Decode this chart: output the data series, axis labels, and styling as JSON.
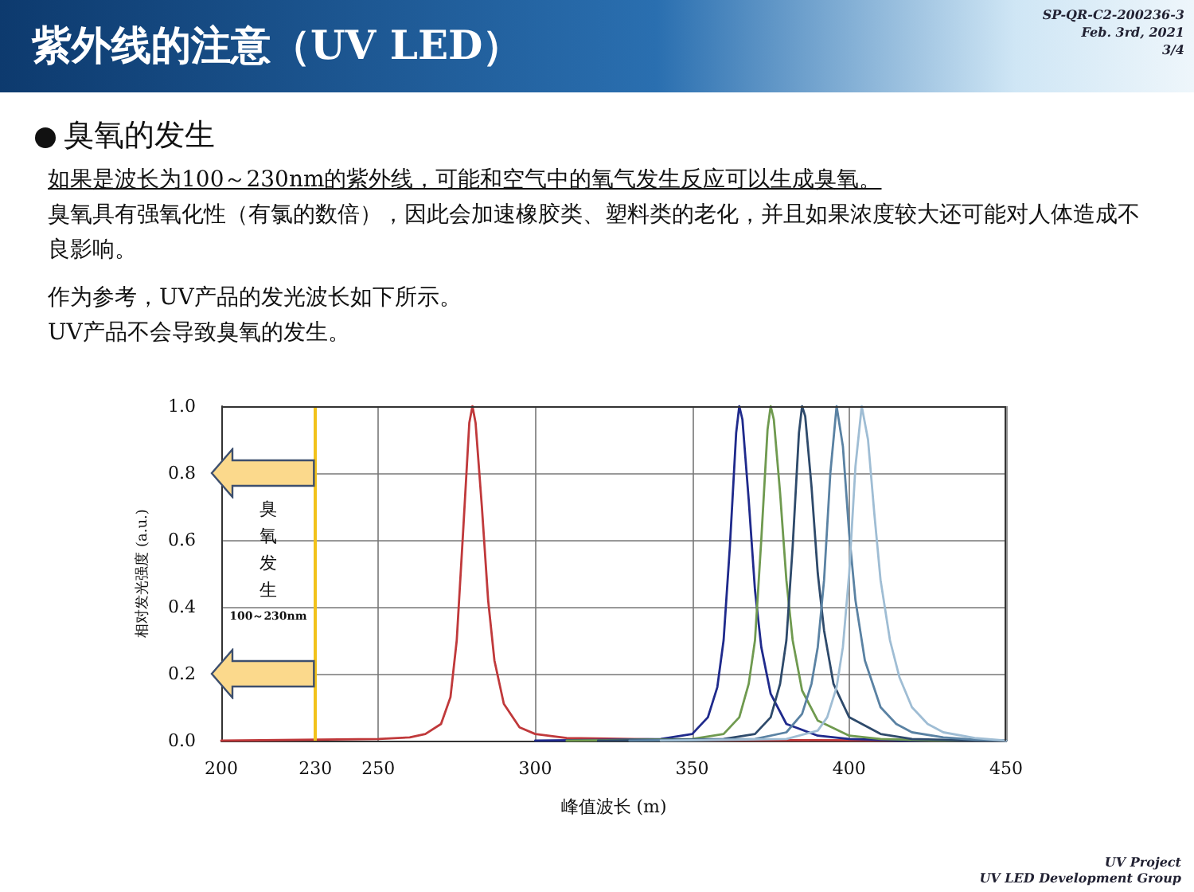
{
  "chart_data": {
    "type": "line",
    "title": "紫外线的注意（UV LED）",
    "subtitle": "臭氧的发生",
    "xlabel": "峰值波长 (m)",
    "ylabel": "相对发光强度 (a.u.)",
    "xlim": [
      200,
      450
    ],
    "xticks": [
      200,
      230,
      250,
      300,
      350,
      400,
      450
    ],
    "ylim": [
      0,
      1
    ],
    "yticks": [
      {
        "value": 0,
        "label": "0.0"
      },
      {
        "value": 0.2,
        "label": "0.2"
      },
      {
        "value": 0.4,
        "label": "0.4"
      },
      {
        "value": 0.6,
        "label": "0.6"
      },
      {
        "value": 0.8,
        "label": "0.8"
      },
      {
        "value": 1,
        "label": "1.0"
      }
    ],
    "grid": true,
    "marker": "none",
    "line_style": "solid",
    "ref_lines": [
      {
        "axis": "x",
        "value": 230,
        "color": "#f2c21b"
      }
    ],
    "annotations": [
      "SP-QR-C2-200236-3",
      "Feb. 3rd, 2021",
      "3/4",
      "如果是波长为100～230nm的紫外线，可能和空气中的氧气发生反应可以生成臭氧。",
      "臭氧具有强氧化性（有氯的数倍），因此会加速橡胶类、塑料类的老化，并且如果浓度较大还可能对人体造成不良影响。",
      "作为参考，UV产品的发光波长如下所示。",
      "UV产品不会导致臭氧的发生。",
      "UV Project",
      "UV LED Development Group",
      "臭氧发生",
      "100～230nm"
    ],
    "series": [
      {
        "color": "#c0393b",
        "x": [
          200,
          250,
          260,
          265,
          270,
          273,
          275,
          277,
          279,
          280,
          281,
          283,
          285,
          287,
          290,
          295,
          300,
          310,
          350,
          450
        ],
        "values": [
          0,
          0.005,
          0.01,
          0.02,
          0.05,
          0.13,
          0.3,
          0.62,
          0.95,
          1.0,
          0.95,
          0.7,
          0.42,
          0.24,
          0.11,
          0.04,
          0.02,
          0.008,
          0.002,
          0
        ]
      },
      {
        "color": "#1f2a8c",
        "x": [
          300,
          340,
          350,
          355,
          358,
          360,
          362,
          364,
          365,
          366,
          368,
          370,
          372,
          375,
          380,
          390,
          400,
          420,
          450
        ],
        "values": [
          0,
          0.005,
          0.02,
          0.07,
          0.16,
          0.3,
          0.58,
          0.92,
          1.0,
          0.96,
          0.72,
          0.45,
          0.28,
          0.14,
          0.05,
          0.015,
          0.005,
          0,
          0
        ]
      },
      {
        "color": "#6f9a4f",
        "x": [
          310,
          350,
          360,
          365,
          368,
          370,
          372,
          374,
          375,
          376,
          378,
          380,
          382,
          385,
          390,
          400,
          410,
          430,
          450
        ],
        "values": [
          0,
          0.005,
          0.02,
          0.07,
          0.17,
          0.3,
          0.6,
          0.93,
          1.0,
          0.96,
          0.74,
          0.48,
          0.3,
          0.15,
          0.06,
          0.015,
          0.005,
          0,
          0
        ]
      },
      {
        "color": "#2e4a6b",
        "x": [
          320,
          360,
          370,
          375,
          378,
          380,
          382,
          384,
          385,
          386,
          388,
          390,
          392,
          395,
          400,
          410,
          420,
          440,
          450
        ],
        "values": [
          0,
          0.005,
          0.02,
          0.07,
          0.17,
          0.3,
          0.58,
          0.92,
          1.0,
          0.97,
          0.76,
          0.5,
          0.33,
          0.17,
          0.07,
          0.02,
          0.005,
          0,
          0
        ]
      },
      {
        "color": "#5a82a3",
        "x": [
          330,
          370,
          380,
          385,
          388,
          390,
          392,
          394,
          396,
          398,
          400,
          402,
          405,
          410,
          415,
          420,
          430,
          440,
          450
        ],
        "values": [
          0,
          0.005,
          0.025,
          0.08,
          0.17,
          0.28,
          0.48,
          0.8,
          1.0,
          0.88,
          0.62,
          0.42,
          0.24,
          0.1,
          0.05,
          0.025,
          0.01,
          0.003,
          0
        ]
      },
      {
        "color": "#9fbdd4",
        "x": [
          340,
          380,
          390,
          393,
          396,
          398,
          400,
          402,
          404,
          406,
          408,
          410,
          413,
          416,
          420,
          425,
          430,
          440,
          450
        ],
        "values": [
          0,
          0.005,
          0.03,
          0.07,
          0.16,
          0.28,
          0.5,
          0.82,
          1.0,
          0.9,
          0.68,
          0.48,
          0.3,
          0.19,
          0.1,
          0.05,
          0.025,
          0.008,
          0
        ]
      }
    ]
  }
}
